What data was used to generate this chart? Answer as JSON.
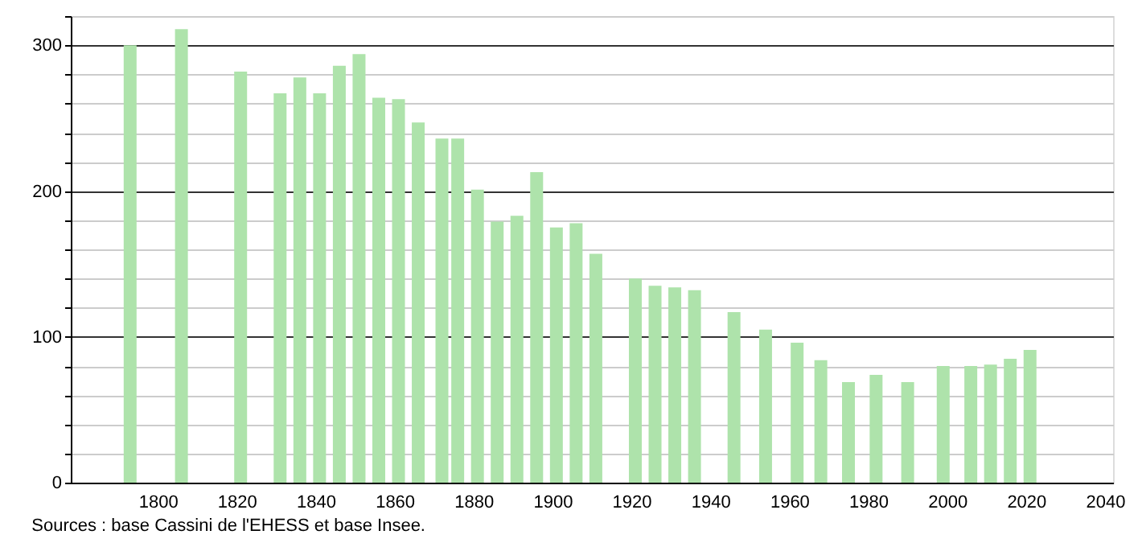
{
  "chart_data": {
    "type": "bar",
    "x": [
      1793,
      1806,
      1821,
      1831,
      1836,
      1841,
      1846,
      1851,
      1856,
      1861,
      1866,
      1872,
      1876,
      1881,
      1886,
      1891,
      1896,
      1901,
      1906,
      1911,
      1921,
      1926,
      1931,
      1936,
      1946,
      1954,
      1962,
      1968,
      1975,
      1982,
      1990,
      1999,
      2006,
      2011,
      2016,
      2021
    ],
    "values": [
      300,
      311,
      282,
      267,
      278,
      267,
      286,
      294,
      264,
      263,
      247,
      236,
      236,
      201,
      179,
      183,
      213,
      175,
      178,
      157,
      140,
      135,
      134,
      132,
      117,
      105,
      96,
      84,
      69,
      74,
      69,
      80,
      80,
      81,
      85,
      91
    ],
    "color": "#aee3ab",
    "xlim": [
      1780,
      2040
    ],
    "xticks": [
      1800,
      1820,
      1840,
      1860,
      1880,
      1900,
      1920,
      1940,
      1960,
      1980,
      2000,
      2020,
      2040
    ],
    "ylim": [
      0,
      320
    ],
    "yticks": [
      0,
      {
        "value": 20,
        "label": null
      },
      {
        "value": 40,
        "label": null
      },
      {
        "value": 60,
        "label": null
      },
      {
        "value": 80,
        "label": null
      },
      100,
      {
        "value": 120,
        "label": null
      },
      {
        "value": 140,
        "label": null
      },
      {
        "value": 160,
        "label": null
      },
      {
        "value": 180,
        "label": null
      },
      200,
      {
        "value": 220,
        "label": null
      },
      {
        "value": 240,
        "label": null
      },
      {
        "value": 260,
        "label": null
      },
      {
        "value": 280,
        "label": null
      },
      300,
      {
        "value": 320,
        "label": null
      }
    ],
    "grid": "y",
    "annotations": [
      "Sources : base Cassini de l'EHESS et base Insee."
    ]
  }
}
